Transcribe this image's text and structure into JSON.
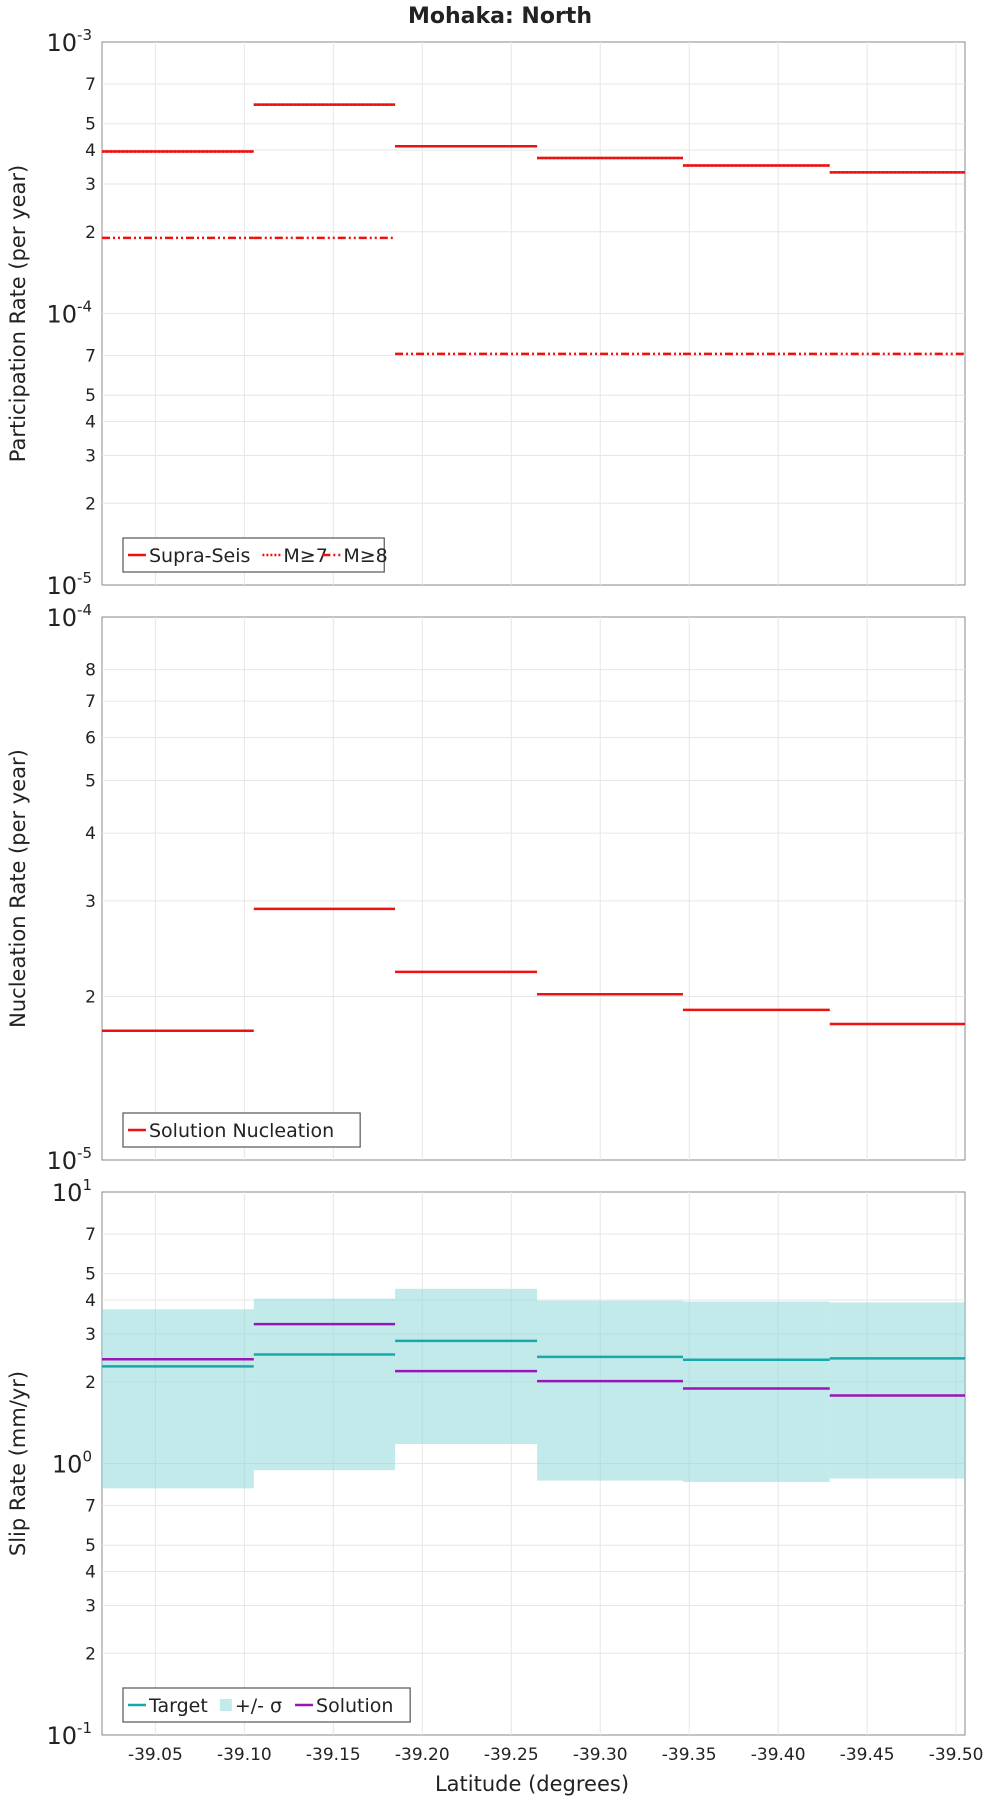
{
  "chart_data": {
    "type": "step-line",
    "title": "Mohaka: North",
    "xlabel": "Latitude (degrees)",
    "xlim": [
      -39.02,
      -39.505
    ],
    "x_ticks": [
      "-39.05",
      "-39.10",
      "-39.15",
      "-39.20",
      "-39.25",
      "-39.30",
      "-39.35",
      "-39.40",
      "-39.45",
      "-39.50"
    ],
    "bin_edges": [
      -39.02,
      -39.1053,
      -39.1847,
      -39.2645,
      -39.3465,
      -39.429,
      -39.505
    ],
    "panels": [
      {
        "id": "participation",
        "ylabel": "Participation Rate (per year)",
        "yscale": "log",
        "ylim": [
          1e-05,
          0.001
        ],
        "major_tick_labels": [
          {
            "value": 0.001,
            "base": "10",
            "exp": "-3"
          },
          {
            "value": 0.0001,
            "base": "10",
            "exp": "-4"
          },
          {
            "value": 1e-05,
            "base": "10",
            "exp": "-5"
          }
        ],
        "minor_tick_labels": [
          {
            "value": 0.0007,
            "label": "7"
          },
          {
            "value": 0.0005,
            "label": "5"
          },
          {
            "value": 0.0004,
            "label": "4"
          },
          {
            "value": 0.0003,
            "label": "3"
          },
          {
            "value": 0.0002,
            "label": "2"
          },
          {
            "value": 7e-05,
            "label": "7"
          },
          {
            "value": 5e-05,
            "label": "5"
          },
          {
            "value": 4e-05,
            "label": "4"
          },
          {
            "value": 3e-05,
            "label": "3"
          },
          {
            "value": 2e-05,
            "label": "2"
          }
        ],
        "series": [
          {
            "name": "Supra-Seis",
            "color": "#ee1111",
            "dash": "solid",
            "values": [
              0.000395,
              0.000588,
              0.000413,
              0.000374,
              0.000351,
              0.000331
            ]
          },
          {
            "name": "M≥7",
            "color": "#ee1111",
            "dash": "dot",
            "values": [
              0.000395,
              0.000588,
              0.000413,
              0.000374,
              0.000351,
              0.000331
            ]
          },
          {
            "name": "M≥8",
            "color": "#ee1111",
            "dash": "dashdotdot",
            "values": [
              0.00019,
              0.00019,
              7.1e-05,
              7.1e-05,
              7.1e-05,
              7.1e-05
            ]
          }
        ],
        "legend_position": "bottom-left"
      },
      {
        "id": "nucleation",
        "ylabel": "Nucleation Rate (per year)",
        "yscale": "log",
        "ylim": [
          1e-05,
          0.0001
        ],
        "major_tick_labels": [
          {
            "value": 0.0001,
            "base": "10",
            "exp": "-4"
          },
          {
            "value": 1e-05,
            "base": "10",
            "exp": "-5"
          }
        ],
        "minor_tick_labels": [
          {
            "value": 8e-05,
            "label": "8"
          },
          {
            "value": 7e-05,
            "label": "7"
          },
          {
            "value": 6e-05,
            "label": "6"
          },
          {
            "value": 5e-05,
            "label": "5"
          },
          {
            "value": 4e-05,
            "label": "4"
          },
          {
            "value": 3e-05,
            "label": "3"
          },
          {
            "value": 2e-05,
            "label": "2"
          }
        ],
        "series": [
          {
            "name": "Solution Nucleation",
            "color": "#ee1111",
            "dash": "solid",
            "values": [
              1.73e-05,
              2.9e-05,
              2.22e-05,
              2.02e-05,
              1.89e-05,
              1.78e-05
            ]
          }
        ],
        "legend_position": "bottom-left"
      },
      {
        "id": "slip",
        "ylabel": "Slip Rate (mm/yr)",
        "yscale": "log",
        "ylim": [
          0.1,
          10
        ],
        "major_tick_labels": [
          {
            "value": 10,
            "base": "10",
            "exp": "1"
          },
          {
            "value": 1,
            "base": "10",
            "exp": "0"
          },
          {
            "value": 0.1,
            "base": "10",
            "exp": "-1"
          }
        ],
        "minor_tick_labels": [
          {
            "value": 7,
            "label": "7"
          },
          {
            "value": 5,
            "label": "5"
          },
          {
            "value": 4,
            "label": "4"
          },
          {
            "value": 3,
            "label": "3"
          },
          {
            "value": 2,
            "label": "2"
          },
          {
            "value": 0.7,
            "label": "7"
          },
          {
            "value": 0.5,
            "label": "5"
          },
          {
            "value": 0.4,
            "label": "4"
          },
          {
            "value": 0.3,
            "label": "3"
          },
          {
            "value": 0.2,
            "label": "2"
          }
        ],
        "band": {
          "name": "+/- σ",
          "color": "#8fd9d9",
          "lower": [
            0.81,
            0.945,
            1.18,
            0.865,
            0.855,
            0.88
          ],
          "upper": [
            3.7,
            4.05,
            4.4,
            3.98,
            3.95,
            3.92
          ]
        },
        "series": [
          {
            "name": "Target",
            "color": "#17a9a9",
            "dash": "solid",
            "values": [
              2.28,
              2.52,
              2.83,
              2.47,
              2.41,
              2.44
            ]
          },
          {
            "name": "Solution",
            "color": "#9b15b5",
            "dash": "solid",
            "values": [
              2.42,
              3.26,
              2.19,
              2.01,
              1.89,
              1.78
            ]
          }
        ],
        "legend_order": [
          "Target",
          "+/- σ",
          "Solution"
        ],
        "legend_position": "bottom-left"
      }
    ]
  }
}
